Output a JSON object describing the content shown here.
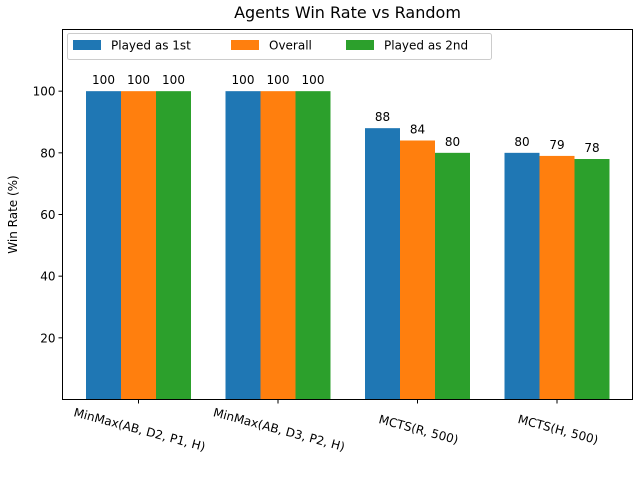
{
  "chart_data": {
    "type": "bar",
    "title": "Agents Win Rate vs Random",
    "xlabel": "",
    "ylabel": "Win Rate (%)",
    "ylim": [
      0,
      120
    ],
    "yticks": [
      20,
      40,
      60,
      80,
      100
    ],
    "grid": false,
    "legend_position": "top-left",
    "categories": [
      "MinMax(AB, D2, P1, H)",
      "MinMax(AB, D3, P2, H)",
      "MCTS(R, 500)",
      "MCTS(H, 500)"
    ],
    "series": [
      {
        "name": "Played as 1st",
        "color": "#1f77b4",
        "values": [
          100,
          100,
          88,
          80
        ]
      },
      {
        "name": "Overall",
        "color": "#ff7f0e",
        "values": [
          100,
          100,
          84,
          79
        ]
      },
      {
        "name": "Played as 2nd",
        "color": "#2ca02c",
        "values": [
          100,
          100,
          80,
          78
        ]
      }
    ]
  }
}
